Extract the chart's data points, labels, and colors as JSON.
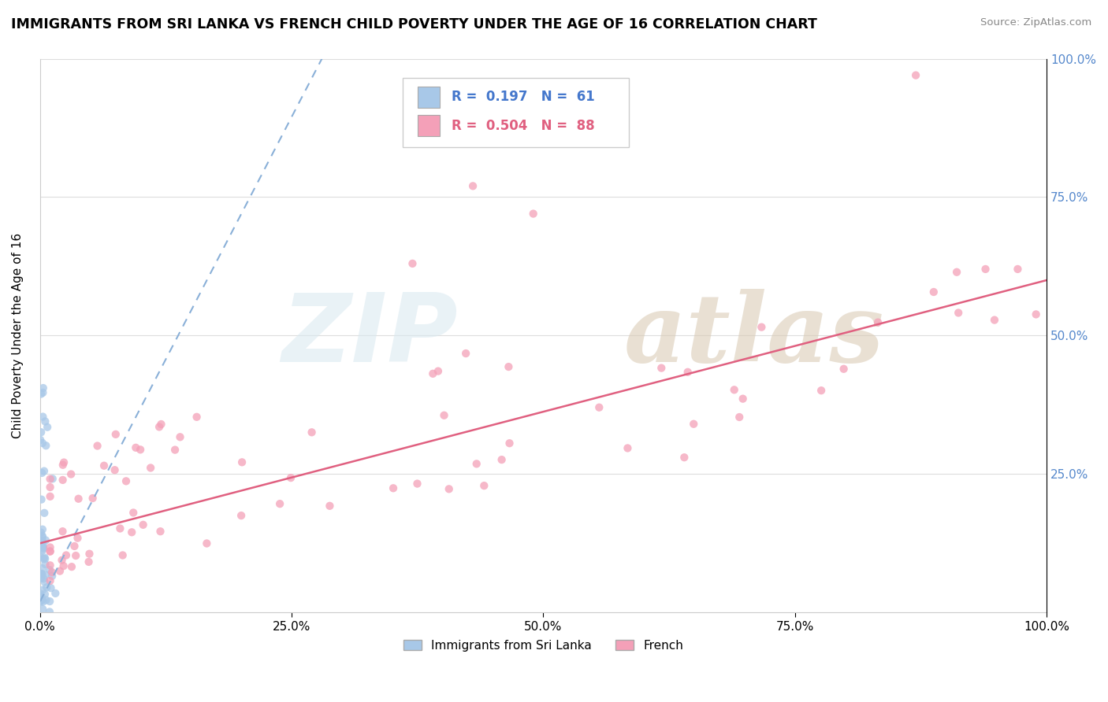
{
  "title": "IMMIGRANTS FROM SRI LANKA VS FRENCH CHILD POVERTY UNDER THE AGE OF 16 CORRELATION CHART",
  "source": "Source: ZipAtlas.com",
  "ylabel_left": "Child Poverty Under the Age of 16",
  "blue_R": 0.197,
  "blue_N": 61,
  "pink_R": 0.504,
  "pink_N": 88,
  "blue_color": "#a8c8e8",
  "pink_color": "#f4a0b8",
  "blue_line_color": "#8ab0d8",
  "pink_line_color": "#e06080",
  "watermark_zip": "ZIP",
  "watermark_atlas": "atlas",
  "xlim": [
    0.0,
    1.0
  ],
  "ylim": [
    0.0,
    1.0
  ],
  "x_ticks": [
    0.0,
    0.25,
    0.5,
    0.75,
    1.0
  ],
  "x_tick_labels": [
    "0.0%",
    "25.0%",
    "50.0%",
    "75.0%",
    "100.0%"
  ],
  "y_ticks_right": [
    0.25,
    0.5,
    0.75,
    1.0
  ],
  "y_tick_labels_right": [
    "25.0%",
    "50.0%",
    "75.0%",
    "100.0%"
  ],
  "legend_blue_label": "Immigrants from Sri Lanka",
  "legend_pink_label": "French",
  "blue_trend_x0": 0.0,
  "blue_trend_y0": 0.02,
  "blue_trend_x1": 0.28,
  "blue_trend_y1": 1.0,
  "pink_trend_x0": 0.0,
  "pink_trend_y0": 0.125,
  "pink_trend_x1": 1.0,
  "pink_trend_y1": 0.6
}
